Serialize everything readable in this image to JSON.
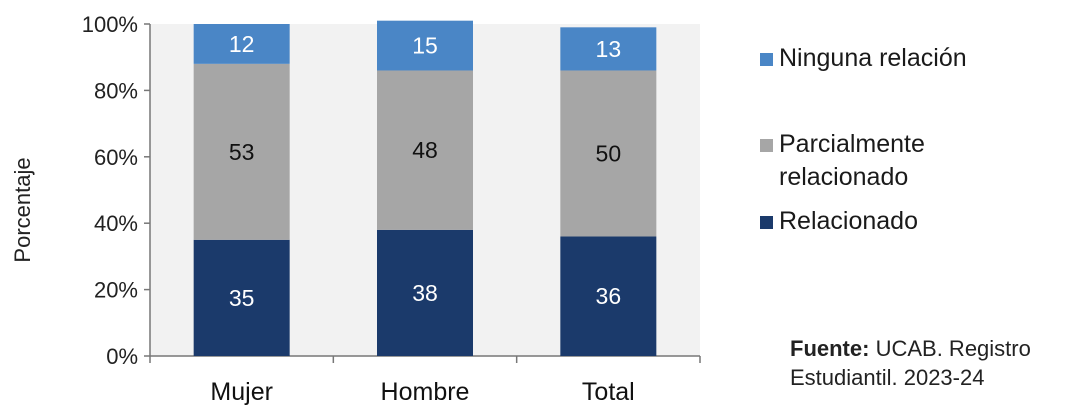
{
  "chart_data": {
    "type": "bar",
    "stacked": true,
    "categories": [
      "Mujer",
      "Hombre",
      "Total"
    ],
    "series": [
      {
        "name": "Relacionado",
        "values": [
          35,
          38,
          36
        ],
        "color": "#1b3a6b"
      },
      {
        "name": "Parcialmente relacionado",
        "values": [
          53,
          48,
          50
        ],
        "color": "#a6a6a6"
      },
      {
        "name": "Ninguna relación",
        "values": [
          12,
          15,
          13
        ],
        "color": "#4a86c6"
      }
    ],
    "legend_order": [
      "Ninguna relación",
      "Parcialmente relacionado",
      "Relacionado"
    ],
    "ylabel": "Porcentaje",
    "ylim": [
      0,
      100
    ],
    "yticks": [
      "0%",
      "20%",
      "40%",
      "60%",
      "80%",
      "100%"
    ],
    "legend_position": "right",
    "grid": false
  },
  "source": {
    "label": "Fuente:",
    "text": "UCAB. Registro Estudiantil. 2023-24"
  }
}
